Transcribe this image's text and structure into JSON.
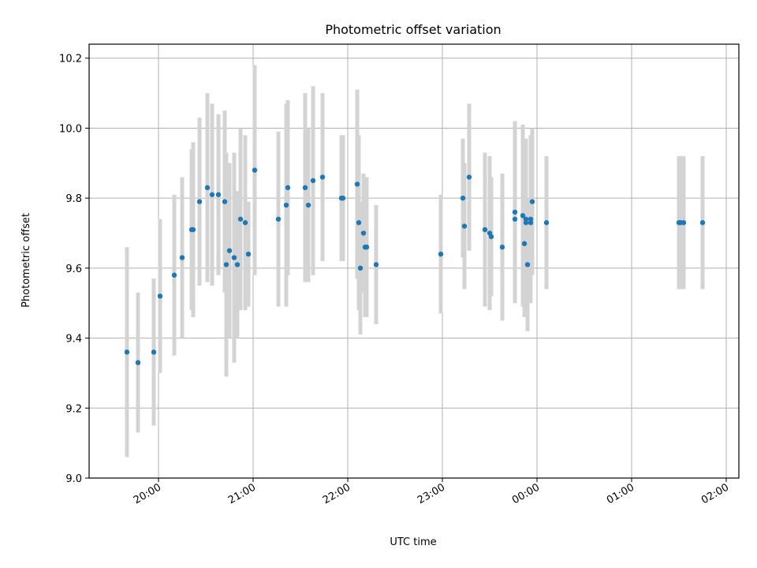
{
  "chart_data": {
    "type": "scatter",
    "title": "Photometric offset variation",
    "xlabel": "UTC time",
    "ylabel": "Photometric offset",
    "xlim": [
      "19:16",
      "02:08"
    ],
    "ylim": [
      9.0,
      10.24
    ],
    "grid": true,
    "x_tick_labels": [
      "20:00",
      "21:00",
      "22:00",
      "23:00",
      "00:00",
      "01:00",
      "02:00"
    ],
    "y_tick_labels": [
      "9.0",
      "9.2",
      "9.4",
      "9.6",
      "9.8",
      "10.0",
      "10.2"
    ],
    "colors": {
      "marker": "#1f77b4",
      "errorbar": "#d3d3d3",
      "grid": "#b0b0b0"
    },
    "series": [
      {
        "x": [
          "19:40",
          "19:47",
          "19:57",
          "20:01",
          "20:10",
          "20:15",
          "20:21",
          "20:22",
          "20:26",
          "20:31",
          "20:34",
          "20:38",
          "20:42",
          "20:43",
          "20:45",
          "20:48",
          "20:50",
          "20:52",
          "20:55",
          "20:57",
          "21:01",
          "21:16",
          "21:21",
          "21:22",
          "21:33",
          "21:35",
          "21:38",
          "21:44",
          "21:56",
          "21:57",
          "22:06",
          "22:07",
          "22:08",
          "22:10",
          "22:11",
          "22:12",
          "22:18",
          "22:59",
          "23:13",
          "23:14",
          "23:17",
          "23:27",
          "23:30",
          "23:31",
          "23:38",
          "23:46",
          "23:46",
          "23:51",
          "23:52",
          "23:53",
          "23:53",
          "23:54",
          "23:56",
          "23:56",
          "23:57",
          "00:06",
          "01:30",
          "01:31",
          "01:33",
          "01:45"
        ],
        "y": [
          9.36,
          9.33,
          9.36,
          9.52,
          9.58,
          9.63,
          9.71,
          9.71,
          9.79,
          9.83,
          9.81,
          9.81,
          9.79,
          9.61,
          9.65,
          9.63,
          9.61,
          9.74,
          9.73,
          9.64,
          9.88,
          9.74,
          9.78,
          9.83,
          9.83,
          9.78,
          9.85,
          9.86,
          9.8,
          9.8,
          9.84,
          9.73,
          9.6,
          9.7,
          9.66,
          9.66,
          9.61,
          9.64,
          9.8,
          9.72,
          9.86,
          9.71,
          9.7,
          9.69,
          9.66,
          9.74,
          9.76,
          9.75,
          9.67,
          9.73,
          9.74,
          9.61,
          9.73,
          9.74,
          9.79,
          9.73,
          9.73,
          9.73,
          9.73,
          9.73
        ],
        "yerr": [
          0.3,
          0.2,
          0.21,
          0.22,
          0.23,
          0.23,
          0.23,
          0.25,
          0.24,
          0.27,
          0.26,
          0.23,
          0.26,
          0.32,
          0.25,
          0.3,
          0.21,
          0.26,
          0.25,
          0.15,
          0.3,
          0.25,
          0.29,
          0.25,
          0.27,
          0.22,
          0.27,
          0.24,
          0.18,
          0.18,
          0.27,
          0.25,
          0.19,
          0.17,
          0.2,
          0.2,
          0.17,
          0.17,
          0.17,
          0.18,
          0.21,
          0.22,
          0.22,
          0.17,
          0.21,
          0.24,
          0.26,
          0.26,
          0.21,
          0.23,
          0.23,
          0.19,
          0.23,
          0.24,
          0.21,
          0.19,
          0.19,
          0.19,
          0.19,
          0.19
        ]
      }
    ]
  }
}
